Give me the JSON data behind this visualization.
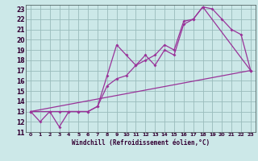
{
  "xlabel": "Windchill (Refroidissement éolien,°C)",
  "bg_color": "#cce8e8",
  "line_color": "#993399",
  "grid_color": "#99bbbb",
  "xlim": [
    -0.5,
    23.5
  ],
  "ylim": [
    11,
    23.4
  ],
  "xticks": [
    0,
    1,
    2,
    3,
    4,
    5,
    6,
    7,
    8,
    9,
    10,
    11,
    12,
    13,
    14,
    15,
    16,
    17,
    18,
    19,
    20,
    21,
    22,
    23
  ],
  "yticks": [
    11,
    12,
    13,
    14,
    15,
    16,
    17,
    18,
    19,
    20,
    21,
    22,
    23
  ],
  "line1_x": [
    0,
    1,
    2,
    3,
    4,
    5,
    6,
    7,
    8,
    9,
    10,
    11,
    12,
    13,
    14,
    15,
    16,
    17,
    18,
    19,
    20,
    21,
    22,
    23
  ],
  "line1_y": [
    13,
    12,
    13,
    11.5,
    13,
    13,
    13,
    13.5,
    16.5,
    19.5,
    18.5,
    17.5,
    18.5,
    17.5,
    19,
    18.5,
    21.5,
    22,
    23.2,
    23,
    22,
    21,
    20.5,
    17
  ],
  "line2_x": [
    0,
    2,
    3,
    4,
    5,
    6,
    7,
    8,
    9,
    10,
    11,
    12,
    13,
    14,
    15,
    16,
    17,
    18,
    23
  ],
  "line2_y": [
    13,
    13,
    13,
    13,
    13,
    13,
    13.5,
    15.5,
    16.2,
    16.5,
    17.5,
    18,
    18.5,
    19.5,
    19,
    21.8,
    22,
    23.2,
    17
  ],
  "line3_x": [
    0,
    23
  ],
  "line3_y": [
    13,
    17
  ]
}
